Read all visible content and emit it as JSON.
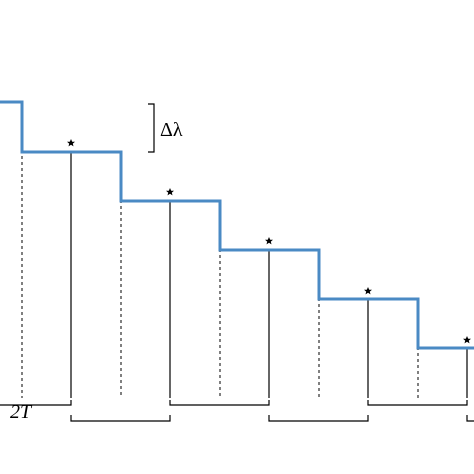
{
  "labels": {
    "delta_lambda": "Δλ",
    "period": "2T"
  }
}
